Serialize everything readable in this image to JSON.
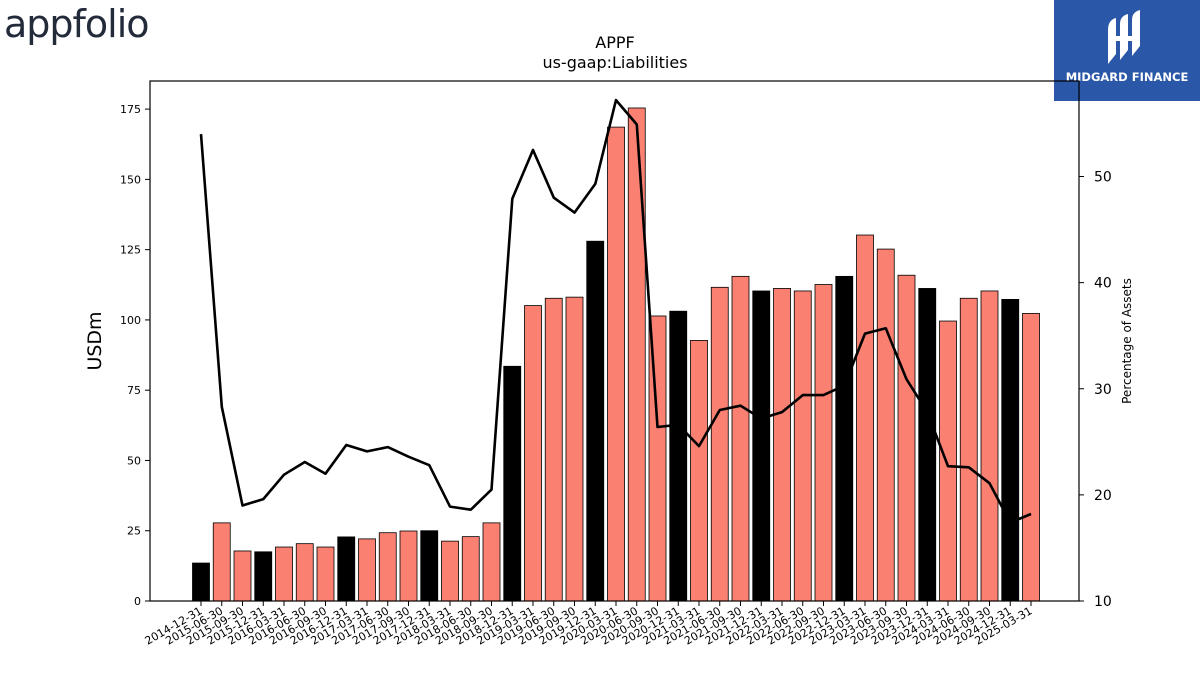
{
  "branding": {
    "left_logo_text": "appfolio",
    "right_logo_text": "MIDGARD FINANCE",
    "right_logo_bg": "#2b57a8"
  },
  "colors": {
    "highlight_bar": "#000000",
    "normal_bar": "#fa8072",
    "line": "#000000"
  },
  "chart_data": {
    "type": "bar",
    "title": "APPF",
    "subtitle": "us-gaap:Liabilities",
    "ylabel": "USDm",
    "y2label": "Percentage of Assets",
    "ylim": [
      0,
      185
    ],
    "y2lim": [
      10,
      59
    ],
    "yticks": [
      0,
      25,
      50,
      75,
      100,
      125,
      150,
      175
    ],
    "y2ticks": [
      10,
      20,
      30,
      40,
      50
    ],
    "categories": [
      "2014-12-31",
      "2015-06-30",
      "2015-09-30",
      "2015-12-31",
      "2016-03-31",
      "2016-06-30",
      "2016-09-30",
      "2016-12-31",
      "2017-03-31",
      "2017-06-30",
      "2017-09-30",
      "2017-12-31",
      "2018-03-31",
      "2018-06-30",
      "2018-09-30",
      "2018-12-31",
      "2019-03-31",
      "2019-06-30",
      "2019-09-30",
      "2019-12-31",
      "2020-03-31",
      "2020-06-30",
      "2020-09-30",
      "2020-12-31",
      "2021-03-31",
      "2021-06-30",
      "2021-09-30",
      "2021-12-31",
      "2022-03-31",
      "2022-06-30",
      "2022-09-30",
      "2022-12-31",
      "2023-03-31",
      "2023-06-30",
      "2023-09-30",
      "2023-12-31",
      "2024-03-31",
      "2024-06-30",
      "2024-09-30",
      "2024-12-31",
      "2025-03-31"
    ],
    "series": [
      {
        "values": [
          13.5,
          27.8,
          17.8,
          17.5,
          19.2,
          20.4,
          19.2,
          22.8,
          22.1,
          24.3,
          24.9,
          25.0,
          21.3,
          22.9,
          27.8,
          83.5,
          105.1,
          107.7,
          108.1,
          128.0,
          168.6,
          175.4,
          101.4,
          103.1,
          92.7,
          111.6,
          115.5,
          110.3,
          111.2,
          110.3,
          112.6,
          115.5,
          130.2,
          125.2,
          115.9,
          111.2,
          99.6,
          107.7,
          110.3,
          107.3,
          102.3
        ],
        "highlight": [
          true,
          false,
          false,
          true,
          false,
          false,
          false,
          true,
          false,
          false,
          false,
          true,
          false,
          false,
          false,
          true,
          false,
          false,
          false,
          true,
          false,
          false,
          false,
          true,
          false,
          false,
          false,
          true,
          false,
          false,
          false,
          true,
          false,
          false,
          false,
          true,
          false,
          false,
          false,
          true,
          false
        ]
      },
      {
        "axis": "right",
        "values": [
          54.0,
          28.3,
          19.0,
          19.6,
          21.9,
          23.1,
          22.0,
          24.7,
          24.1,
          24.5,
          23.6,
          22.8,
          18.9,
          18.6,
          20.5,
          47.9,
          52.5,
          48.0,
          46.6,
          49.3,
          57.2,
          54.9,
          26.4,
          26.6,
          24.6,
          28.0,
          28.4,
          27.2,
          27.8,
          29.4,
          29.4,
          30.3,
          35.2,
          35.7,
          30.9,
          27.8,
          22.7,
          22.6,
          21.1,
          17.4,
          18.2
        ]
      }
    ]
  }
}
